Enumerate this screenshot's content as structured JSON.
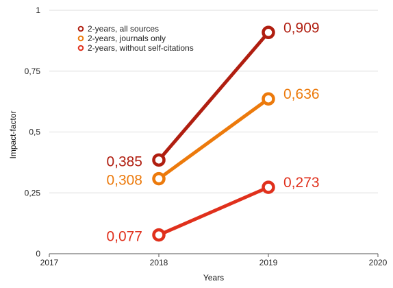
{
  "chart_data": {
    "type": "line",
    "title": "",
    "xlabel": "Years",
    "ylabel": "Impact-factor",
    "xlim": [
      2017,
      2020
    ],
    "ylim": [
      0,
      1
    ],
    "x_ticks": [
      2017,
      2018,
      2019,
      2020
    ],
    "x_tick_labels": [
      "2017",
      "2018",
      "2019",
      "2020"
    ],
    "y_ticks": [
      0,
      0.25,
      0.5,
      0.75,
      1
    ],
    "y_tick_labels": [
      "0",
      "0,25",
      "0,5",
      "0,75",
      "1"
    ],
    "grid": "horizontal",
    "legend_position": "top-left",
    "series": [
      {
        "name": "2-years, all sources",
        "color": "#b01e10",
        "x": [
          2018,
          2019
        ],
        "y": [
          0.385,
          0.909
        ],
        "labels": [
          "0,385",
          "0,909"
        ]
      },
      {
        "name": "2-years, journals only",
        "color": "#ec7a0c",
        "x": [
          2018,
          2019
        ],
        "y": [
          0.308,
          0.636
        ],
        "labels": [
          "0,308",
          "0,636"
        ]
      },
      {
        "name": "2-years, without self-citations",
        "color": "#e0301c",
        "x": [
          2018,
          2019
        ],
        "y": [
          0.077,
          0.273
        ],
        "labels": [
          "0,077",
          "0,273"
        ]
      }
    ]
  }
}
